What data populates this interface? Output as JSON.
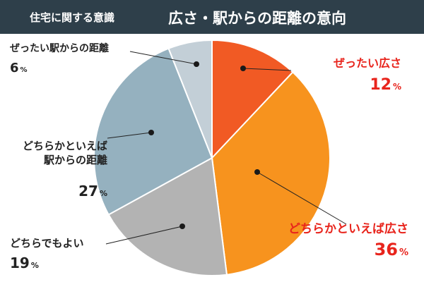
{
  "header": {
    "subtitle": "住宅に関する意識",
    "title": "広さ・駅からの距離の意向"
  },
  "colors": {
    "header_bg": "#2e3f4a",
    "highlight_text": "#e8241c",
    "normal_text": "#222222",
    "leader_line": "#222222"
  },
  "chart_data": {
    "type": "pie",
    "title": "広さ・駅からの距離の意向",
    "subtitle": "住宅に関する意識",
    "unit": "%",
    "slices": [
      {
        "label": "ぜったい広さ",
        "label_lines": [
          "ぜったい広さ"
        ],
        "value": 12,
        "color": "#f15a24",
        "highlight": true
      },
      {
        "label": "どちらかといえば広さ",
        "label_lines": [
          "どちらかといえば広さ"
        ],
        "value": 36,
        "color": "#f7931e",
        "highlight": true
      },
      {
        "label": "どちらでもよい",
        "label_lines": [
          "どちらでもよい"
        ],
        "value": 19,
        "color": "#b3b3b3",
        "highlight": false
      },
      {
        "label": "どちらかといえば駅からの距離",
        "label_lines": [
          "どちらかといえば",
          "駅からの距離"
        ],
        "value": 27,
        "color": "#95b1bf",
        "highlight": false
      },
      {
        "label": "ぜったい駅からの距離",
        "label_lines": [
          "ぜったい駅からの距離"
        ],
        "value": 6,
        "color": "#c3cfd7",
        "highlight": false
      }
    ]
  }
}
